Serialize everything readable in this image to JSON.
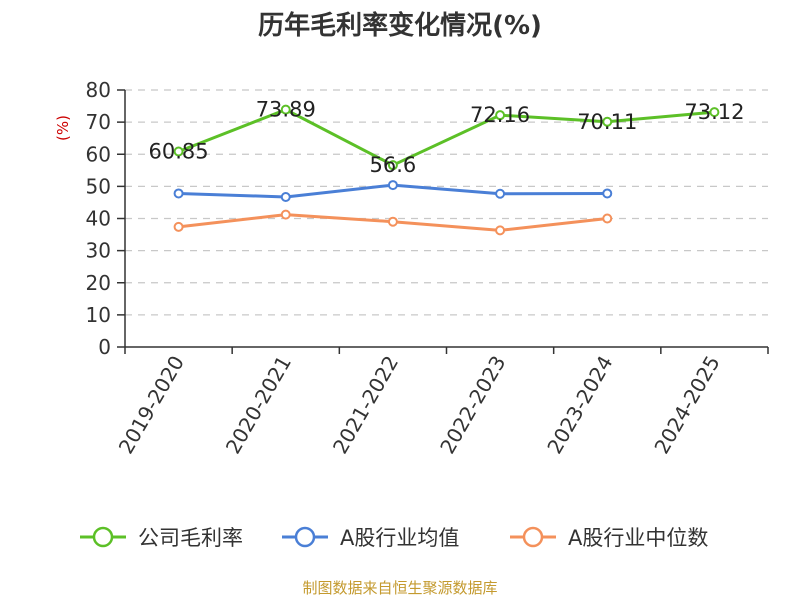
{
  "chart_data": {
    "type": "line",
    "title": "历年毛利率变化情况(%)",
    "ylabel": "(%)",
    "ylim": [
      0,
      80
    ],
    "yticks": [
      0,
      10,
      20,
      30,
      40,
      50,
      60,
      70,
      80
    ],
    "grid": true,
    "legend_position": "bottom",
    "categories": [
      "2019-2020",
      "2020-2021",
      "2021-2022",
      "2022-2023",
      "2023-2024",
      "2024-2025"
    ],
    "series": [
      {
        "name": "公司毛利率",
        "color": "#5cc027",
        "values": [
          60.85,
          73.89,
          56.6,
          72.16,
          70.11,
          73.12
        ],
        "labels": [
          "60.85",
          "73.89",
          "56.6",
          "72.16",
          "70.11",
          "73.12"
        ]
      },
      {
        "name": "A股行业均值",
        "color": "#4a7fd6",
        "values": [
          47.8,
          46.7,
          50.4,
          47.7,
          47.8,
          null
        ]
      },
      {
        "name": "A股行业中位数",
        "color": "#f4915b",
        "values": [
          37.4,
          41.2,
          39.0,
          36.3,
          40.0,
          null
        ]
      }
    ],
    "source": "制图数据来自恒生聚源数据库",
    "source_color": "#c49a2e",
    "ylabel_color": "#cc0000"
  }
}
